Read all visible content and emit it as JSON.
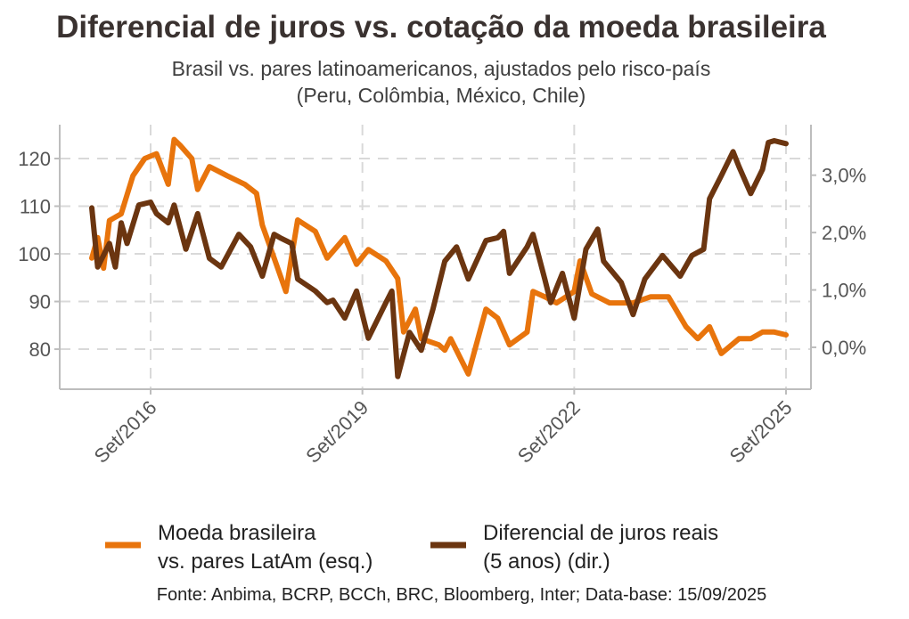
{
  "chart_data": {
    "type": "line",
    "title": "Diferencial de juros vs. cotação da moeda brasileira",
    "subtitle_line1": "Brasil vs. pares latinoamericanos, ajustados pelo risco-país",
    "subtitle_line2": "(Peru, Colômbia, México, Chile)",
    "source": "Fonte: Anbima, BCRP, BCCh, BRC, Bloomberg, Inter; Data-base: 15/09/2025",
    "grid": true,
    "legend_position": "bottom",
    "x_ticks": [
      {
        "date": "2016-09",
        "label": "Set/2016"
      },
      {
        "date": "2019-09",
        "label": "Set/2019"
      },
      {
        "date": "2022-09",
        "label": "Set/2022"
      },
      {
        "date": "2025-09",
        "label": "Set/2025"
      }
    ],
    "y_left": {
      "range": [
        71.6,
        127.1
      ],
      "ticks": [
        80,
        90,
        100,
        110,
        120
      ],
      "tick_labels": [
        "80",
        "90",
        "100",
        "110",
        "120"
      ]
    },
    "y_right": {
      "range": [
        -0.73,
        3.88
      ],
      "ticks": [
        0,
        1,
        2,
        3
      ],
      "tick_labels": [
        "0,0%",
        "1,0%",
        "2,0%",
        "3,0%"
      ]
    },
    "series": [
      {
        "name": "Moeda brasileira vs. pares LatAm (esq.)",
        "legend_line1": "Moeda brasileira",
        "legend_line2": "vs. pares LatAm (esq.)",
        "axis": "left",
        "color": "#E8740C",
        "points": [
          [
            "2015-11",
            99.1
          ],
          [
            "2015-12",
            103.4
          ],
          [
            "2016-01",
            97.0
          ],
          [
            "2016-02",
            107.0
          ],
          [
            "2016-04",
            108.4
          ],
          [
            "2016-06",
            116.4
          ],
          [
            "2016-08",
            120.0
          ],
          [
            "2016-10",
            121.0
          ],
          [
            "2016-12",
            114.6
          ],
          [
            "2017-01",
            124.0
          ],
          [
            "2017-02",
            122.8
          ],
          [
            "2017-04",
            120.0
          ],
          [
            "2017-05",
            113.5
          ],
          [
            "2017-07",
            118.3
          ],
          [
            "2017-10",
            116.4
          ],
          [
            "2018-01",
            114.6
          ],
          [
            "2018-03",
            112.7
          ],
          [
            "2018-04",
            106.0
          ],
          [
            "2018-06",
            99.1
          ],
          [
            "2018-08",
            92.1
          ],
          [
            "2018-10",
            107.1
          ],
          [
            "2019-01",
            104.7
          ],
          [
            "2019-03",
            99.1
          ],
          [
            "2019-06",
            103.4
          ],
          [
            "2019-08",
            97.8
          ],
          [
            "2019-10",
            100.9
          ],
          [
            "2020-01",
            98.5
          ],
          [
            "2020-03",
            94.8
          ],
          [
            "2020-04",
            83.6
          ],
          [
            "2020-06",
            88.4
          ],
          [
            "2020-07",
            82.2
          ],
          [
            "2020-10",
            80.9
          ],
          [
            "2020-11",
            79.8
          ],
          [
            "2020-12",
            82.2
          ],
          [
            "2021-03",
            74.8
          ],
          [
            "2021-06",
            88.4
          ],
          [
            "2021-08",
            86.5
          ],
          [
            "2021-10",
            80.9
          ],
          [
            "2022-01",
            83.6
          ],
          [
            "2022-02",
            92.1
          ],
          [
            "2022-04",
            91.0
          ],
          [
            "2022-06",
            89.7
          ],
          [
            "2022-09",
            92.1
          ],
          [
            "2022-10",
            98.5
          ],
          [
            "2022-12",
            91.6
          ],
          [
            "2023-03",
            89.7
          ],
          [
            "2023-07",
            89.7
          ],
          [
            "2023-10",
            91.0
          ],
          [
            "2024-01",
            91.0
          ],
          [
            "2024-04",
            84.7
          ],
          [
            "2024-06",
            82.2
          ],
          [
            "2024-08",
            84.7
          ],
          [
            "2024-10",
            79.1
          ],
          [
            "2025-01",
            82.2
          ],
          [
            "2025-03",
            82.2
          ],
          [
            "2025-05",
            83.6
          ],
          [
            "2025-07",
            83.6
          ],
          [
            "2025-09",
            83.0
          ]
        ]
      },
      {
        "name": "Diferencial de juros reais (5 anos) (dir.)",
        "legend_line1": "Diferencial de juros reais",
        "legend_line2": "(5 anos) (dir.)",
        "axis": "right",
        "color": "#6B3510",
        "points": [
          [
            "2015-11",
            2.43
          ],
          [
            "2015-12",
            1.4
          ],
          [
            "2016-02",
            1.81
          ],
          [
            "2016-03",
            1.4
          ],
          [
            "2016-04",
            2.17
          ],
          [
            "2016-05",
            1.81
          ],
          [
            "2016-07",
            2.48
          ],
          [
            "2016-09",
            2.53
          ],
          [
            "2016-10",
            2.33
          ],
          [
            "2016-12",
            2.17
          ],
          [
            "2017-01",
            2.48
          ],
          [
            "2017-03",
            1.71
          ],
          [
            "2017-05",
            2.33
          ],
          [
            "2017-07",
            1.55
          ],
          [
            "2017-09",
            1.4
          ],
          [
            "2017-12",
            1.97
          ],
          [
            "2018-02",
            1.75
          ],
          [
            "2018-04",
            1.24
          ],
          [
            "2018-06",
            1.97
          ],
          [
            "2018-07",
            1.91
          ],
          [
            "2018-09",
            1.81
          ],
          [
            "2018-10",
            1.19
          ],
          [
            "2019-01",
            0.98
          ],
          [
            "2019-03",
            0.78
          ],
          [
            "2019-04",
            0.82
          ],
          [
            "2019-06",
            0.51
          ],
          [
            "2019-08",
            0.98
          ],
          [
            "2019-10",
            0.16
          ],
          [
            "2020-01",
            0.78
          ],
          [
            "2020-02",
            0.98
          ],
          [
            "2020-03",
            -0.51
          ],
          [
            "2020-05",
            0.26
          ],
          [
            "2020-07",
            -0.05
          ],
          [
            "2020-09",
            0.67
          ],
          [
            "2020-11",
            1.5
          ],
          [
            "2021-01",
            1.75
          ],
          [
            "2021-03",
            1.19
          ],
          [
            "2021-06",
            1.86
          ],
          [
            "2021-08",
            1.91
          ],
          [
            "2021-09",
            2.02
          ],
          [
            "2021-10",
            1.29
          ],
          [
            "2022-01",
            1.75
          ],
          [
            "2022-02",
            1.97
          ],
          [
            "2022-04",
            1.19
          ],
          [
            "2022-05",
            0.78
          ],
          [
            "2022-07",
            1.29
          ],
          [
            "2022-09",
            0.51
          ],
          [
            "2022-11",
            1.71
          ],
          [
            "2023-01",
            2.06
          ],
          [
            "2023-02",
            1.5
          ],
          [
            "2023-05",
            1.13
          ],
          [
            "2023-07",
            0.57
          ],
          [
            "2023-09",
            1.19
          ],
          [
            "2023-12",
            1.6
          ],
          [
            "2024-03",
            1.24
          ],
          [
            "2024-05",
            1.6
          ],
          [
            "2024-07",
            1.71
          ],
          [
            "2024-08",
            2.59
          ],
          [
            "2024-10",
            2.99
          ],
          [
            "2024-12",
            3.41
          ],
          [
            "2025-01",
            3.15
          ],
          [
            "2025-03",
            2.68
          ],
          [
            "2025-05",
            3.1
          ],
          [
            "2025-06",
            3.57
          ],
          [
            "2025-07",
            3.6
          ],
          [
            "2025-09",
            3.55
          ]
        ]
      }
    ]
  }
}
